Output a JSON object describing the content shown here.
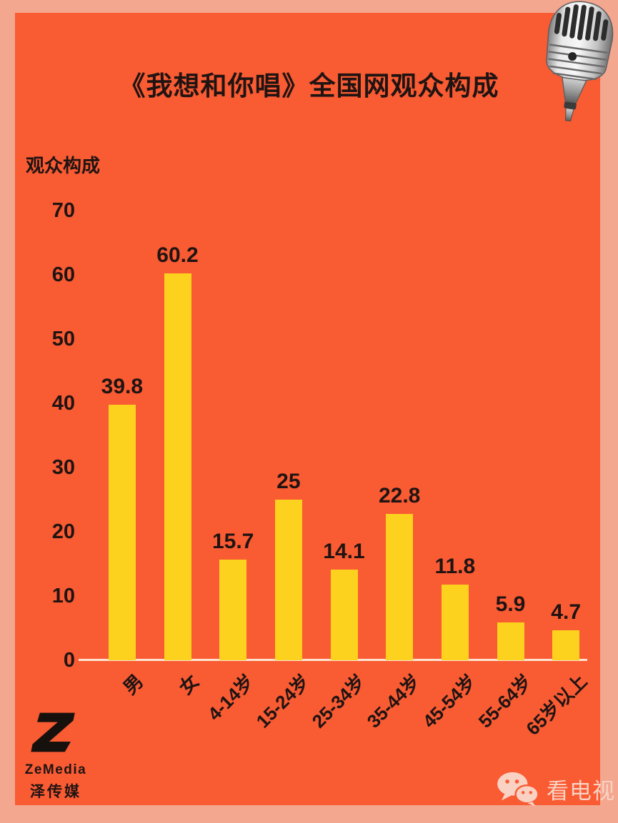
{
  "title": "《我想和你唱》全国网观众构成",
  "chart_data": {
    "type": "bar",
    "title": "《我想和你唱》全国网观众构成",
    "ylabel": "观众构成",
    "xlabel": "",
    "categories": [
      "男",
      "女",
      "4-14岁",
      "15-24岁",
      "25-34岁",
      "35-44岁",
      "45-54岁",
      "55-64岁",
      "65岁以上"
    ],
    "values": [
      39.8,
      60.2,
      15.7,
      25,
      14.1,
      22.8,
      11.8,
      5.9,
      4.7
    ],
    "yticks": [
      70,
      60,
      50,
      40,
      30,
      20,
      10,
      0
    ],
    "ylim": [
      0,
      70
    ],
    "grid": false,
    "legend_position": "none",
    "data_labels_shown": true,
    "x_label_rotation_deg": -45,
    "bar_color": "#FCD21F"
  },
  "branding": {
    "logo_name": "ZeMedia",
    "logo_cn": "泽传媒",
    "wechat_account": "看电视"
  },
  "icons": {
    "microphone": "vintage-microphone",
    "wechat": "wechat-chat-bubbles",
    "zemedia": "z-mark"
  },
  "colors": {
    "frame": "#F3A78F",
    "panel": "#F95B33",
    "bar": "#FCD21F",
    "ink": "#201412",
    "axisline": "#FFE4D2",
    "wechatink": "#F9D2C4"
  }
}
